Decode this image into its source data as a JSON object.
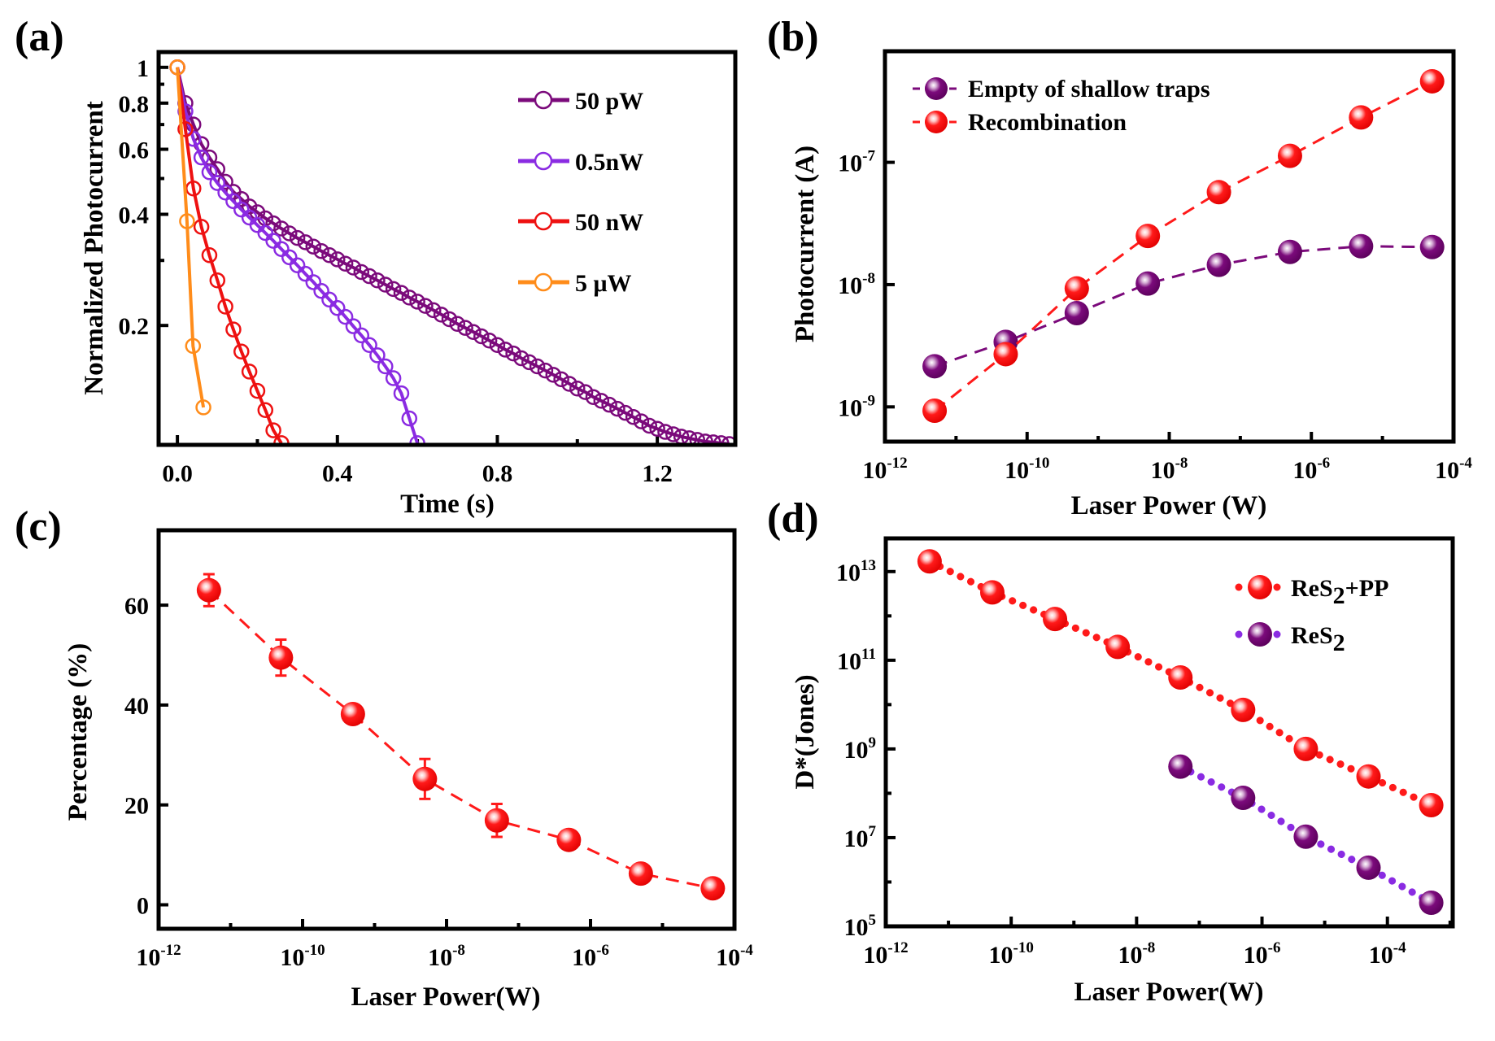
{
  "figure": {
    "panel_labels": [
      "(a)",
      "(b)",
      "(c)",
      "(d)"
    ]
  },
  "chart_data": [
    {
      "id": "a",
      "type": "line",
      "panel_label": "(a)",
      "title": "",
      "xlabel": "Time (s)",
      "ylabel": "Normalized Photocurrent",
      "xscale": "linear",
      "yscale": "log",
      "xlim": [
        -0.047,
        1.395
      ],
      "ylim": [
        0.095,
        1.1
      ],
      "xticks": [
        0.0,
        0.4,
        0.8,
        1.2
      ],
      "xtick_labels": [
        "0.0",
        "0.4",
        "0.8",
        "1.2"
      ],
      "xminor": [
        0.2,
        0.6,
        1.0
      ],
      "yticks": [
        1,
        0.8,
        0.6,
        0.4,
        0.2
      ],
      "ytick_labels": [
        "1",
        "0.8",
        "0.6",
        "0.4",
        "0.2"
      ],
      "yminor": [
        0.9,
        0.7,
        0.5,
        0.3
      ],
      "grid": false,
      "legend_position": "top-right",
      "series": [
        {
          "name": "50 pW",
          "color": "#7b0a7b",
          "marker": "open-circle",
          "fit_line": true,
          "x": [
            0.0,
            0.02,
            0.04,
            0.06,
            0.08,
            0.1,
            0.12,
            0.14,
            0.16,
            0.18,
            0.2,
            0.22,
            0.24,
            0.26,
            0.28,
            0.3,
            0.32,
            0.34,
            0.36,
            0.38,
            0.4,
            0.42,
            0.44,
            0.46,
            0.48,
            0.5,
            0.52,
            0.54,
            0.56,
            0.58,
            0.6,
            0.62,
            0.64,
            0.66,
            0.68,
            0.7,
            0.72,
            0.74,
            0.76,
            0.78,
            0.8,
            0.82,
            0.84,
            0.86,
            0.88,
            0.9,
            0.92,
            0.94,
            0.96,
            0.98,
            1.0,
            1.02,
            1.04,
            1.06,
            1.08,
            1.1,
            1.12,
            1.14,
            1.16,
            1.18,
            1.2,
            1.22,
            1.24,
            1.26,
            1.28,
            1.3,
            1.32,
            1.34,
            1.36,
            1.38
          ],
          "y": [
            1.0,
            0.8,
            0.7,
            0.62,
            0.57,
            0.53,
            0.49,
            0.46,
            0.44,
            0.42,
            0.405,
            0.39,
            0.378,
            0.366,
            0.355,
            0.345,
            0.336,
            0.327,
            0.318,
            0.31,
            0.302,
            0.294,
            0.287,
            0.279,
            0.272,
            0.265,
            0.258,
            0.251,
            0.245,
            0.238,
            0.232,
            0.226,
            0.22,
            0.214,
            0.208,
            0.202,
            0.197,
            0.192,
            0.187,
            0.182,
            0.177,
            0.172,
            0.168,
            0.163,
            0.159,
            0.155,
            0.151,
            0.147,
            0.143,
            0.139,
            0.135,
            0.132,
            0.128,
            0.125,
            0.122,
            0.119,
            0.116,
            0.113,
            0.11,
            0.107,
            0.105,
            0.103,
            0.1015,
            0.1,
            0.099,
            0.098,
            0.097,
            0.0965,
            0.096,
            0.0955
          ]
        },
        {
          "name": "0.5nW",
          "color": "#8a2be2",
          "marker": "open-circle",
          "fit_line": true,
          "x": [
            0.0,
            0.02,
            0.04,
            0.06,
            0.08,
            0.1,
            0.12,
            0.14,
            0.16,
            0.18,
            0.2,
            0.22,
            0.24,
            0.26,
            0.28,
            0.3,
            0.32,
            0.34,
            0.36,
            0.38,
            0.4,
            0.42,
            0.44,
            0.46,
            0.48,
            0.5,
            0.52,
            0.54,
            0.56,
            0.58,
            0.6
          ],
          "y": [
            1.0,
            0.76,
            0.64,
            0.57,
            0.52,
            0.486,
            0.458,
            0.434,
            0.412,
            0.392,
            0.374,
            0.356,
            0.339,
            0.322,
            0.306,
            0.291,
            0.276,
            0.262,
            0.248,
            0.235,
            0.223,
            0.211,
            0.199,
            0.188,
            0.177,
            0.166,
            0.155,
            0.144,
            0.131,
            0.112,
            0.096
          ]
        },
        {
          "name": "50 nW",
          "color": "#ee1111",
          "marker": "open-circle",
          "fit_line": true,
          "x": [
            0.0,
            0.02,
            0.04,
            0.06,
            0.08,
            0.1,
            0.12,
            0.14,
            0.16,
            0.18,
            0.2,
            0.22,
            0.24,
            0.26
          ],
          "y": [
            1.0,
            0.68,
            0.47,
            0.37,
            0.31,
            0.265,
            0.225,
            0.195,
            0.17,
            0.15,
            0.133,
            0.118,
            0.104,
            0.096
          ]
        },
        {
          "name": "5 μW",
          "color": "#ff8c1a",
          "marker": "open-circle",
          "fit_line": true,
          "x": [
            0.0,
            0.024,
            0.039,
            0.065
          ],
          "y": [
            1.0,
            0.383,
            0.176,
            0.12
          ]
        }
      ]
    },
    {
      "id": "b",
      "type": "line",
      "panel_label": "(b)",
      "title": "",
      "xlabel": "Laser Power (W)",
      "ylabel": "Photocurrent (A)",
      "xscale": "log",
      "yscale": "log",
      "xlim": [
        1e-12,
        0.0001
      ],
      "ylim": [
        5.2e-10,
        8.1e-07
      ],
      "xticks": [
        1e-12,
        1e-10,
        1e-08,
        1e-06,
        0.0001
      ],
      "xtick_labels": [
        [
          "10",
          "-12"
        ],
        [
          "10",
          "-10"
        ],
        [
          "10",
          "-8"
        ],
        [
          "10",
          "-6"
        ],
        [
          "10",
          "-4"
        ]
      ],
      "xminor": [
        1e-11,
        1e-09,
        1e-07,
        1e-05
      ],
      "yticks": [
        1e-09,
        1e-08,
        1e-07
      ],
      "ytick_labels": [
        [
          "10",
          "-9"
        ],
        [
          "10",
          "-8"
        ],
        [
          "10",
          "-7"
        ]
      ],
      "grid": false,
      "legend_position": "top-left",
      "series": [
        {
          "name": "Empty of shallow traps",
          "color": "#7b0a7b",
          "line": "dash",
          "marker": "filled-sphere",
          "x": [
            5e-12,
            5e-11,
            5e-10,
            5e-09,
            5e-08,
            5e-07,
            5e-06,
            5e-05
          ],
          "y": [
            2.15e-09,
            3.4e-09,
            5.85e-09,
            1.02e-08,
            1.45e-08,
            1.85e-08,
            2.06e-08,
            2.03e-08
          ]
        },
        {
          "name": "Recombination",
          "color": "#ff1a1a",
          "line": "dash",
          "marker": "filled-sphere",
          "x": [
            5e-12,
            5e-11,
            5e-10,
            5e-09,
            5e-08,
            5e-07,
            5e-06,
            5e-05
          ],
          "y": [
            9.3e-10,
            2.7e-09,
            9.3e-09,
            2.5e-08,
            5.7e-08,
            1.13e-07,
            2.33e-07,
            4.6e-07
          ]
        }
      ]
    },
    {
      "id": "c",
      "type": "line",
      "panel_label": "(c)",
      "title": "",
      "xlabel": "Laser Power(W)",
      "ylabel": "Percentage (%)",
      "xscale": "log",
      "yscale": "linear",
      "xlim": [
        1e-12,
        0.0001
      ],
      "ylim": [
        -4.8,
        75
      ],
      "xticks": [
        1e-12,
        1e-10,
        1e-08,
        1e-06,
        0.0001
      ],
      "xtick_labels": [
        [
          "10",
          "-12"
        ],
        [
          "10",
          "-10"
        ],
        [
          "10",
          "-8"
        ],
        [
          "10",
          "-6"
        ],
        [
          "10",
          "-4"
        ]
      ],
      "xminor": [
        1e-11,
        1e-09,
        1e-07,
        1e-05
      ],
      "yticks": [
        0,
        20,
        40,
        60
      ],
      "ytick_labels": [
        "0",
        "20",
        "40",
        "60"
      ],
      "grid": false,
      "legend_position": "none",
      "series": [
        {
          "name": "Percentage",
          "color": "#ff1a1a",
          "line": "dash",
          "marker": "filled-sphere",
          "x": [
            5e-12,
            5e-11,
            5e-10,
            5e-09,
            5e-08,
            5e-07,
            5e-06,
            5e-05
          ],
          "y": [
            63.0,
            49.5,
            38.2,
            25.2,
            16.9,
            13.0,
            6.25,
            3.3
          ],
          "yerr": [
            3.2,
            3.6,
            1.0,
            4.0,
            3.3,
            1.0,
            1.0,
            1.0
          ]
        }
      ]
    },
    {
      "id": "d",
      "type": "line",
      "panel_label": "(d)",
      "title": "",
      "xlabel": "Laser Power(W)",
      "ylabel": "D*(Jones)",
      "xscale": "log",
      "yscale": "log",
      "xlim": [
        1e-12,
        0.0011
      ],
      "ylim": [
        100000.0,
        56000000000000.0
      ],
      "xticks": [
        1e-12,
        1e-10,
        1e-08,
        1e-06,
        0.0001
      ],
      "xtick_labels": [
        [
          "10",
          "-12"
        ],
        [
          "10",
          "-10"
        ],
        [
          "10",
          "-8"
        ],
        [
          "10",
          "-6"
        ],
        [
          "10",
          "-4"
        ]
      ],
      "xminor": [
        1e-11,
        1e-09,
        1e-07,
        1e-05,
        0.001
      ],
      "yticks": [
        100000.0,
        10000000.0,
        1000000000.0,
        100000000000.0,
        10000000000000.0
      ],
      "ytick_labels": [
        [
          "10",
          "5"
        ],
        [
          "10",
          "7"
        ],
        [
          "10",
          "9"
        ],
        [
          "10",
          "11"
        ],
        [
          "10",
          "13"
        ]
      ],
      "yminor": [
        1000000.0,
        100000000.0,
        10000000000.0,
        1000000000000.0
      ],
      "grid": false,
      "legend_position": "top-right",
      "series": [
        {
          "name": "ReS2+PP",
          "label_parts": [
            "ReS",
            "2",
            "+PP"
          ],
          "color": "#ff1a1a",
          "line_color": "#ff1a1a",
          "line": "dot",
          "marker": "filled-sphere",
          "x": [
            5e-12,
            5e-11,
            5e-10,
            5e-09,
            5e-08,
            5e-07,
            5e-06,
            5e-05,
            0.0005
          ],
          "y": [
            17000000000000.0,
            3400000000000.0,
            850000000000.0,
            200000000000.0,
            41000000000.0,
            7600000000.0,
            1000000000.0,
            240000000.0,
            54000000.0
          ]
        },
        {
          "name": "ReS2",
          "label_parts": [
            "ReS",
            "2",
            ""
          ],
          "color": "#7b0a7b",
          "line_color": "#8a2be2",
          "line": "dot",
          "marker": "filled-sphere",
          "x": [
            5e-08,
            5e-07,
            5e-06,
            5e-05,
            0.0005
          ],
          "y": [
            400000000.0,
            79000000.0,
            10500000.0,
            2100000.0,
            340000.0
          ]
        }
      ]
    }
  ]
}
